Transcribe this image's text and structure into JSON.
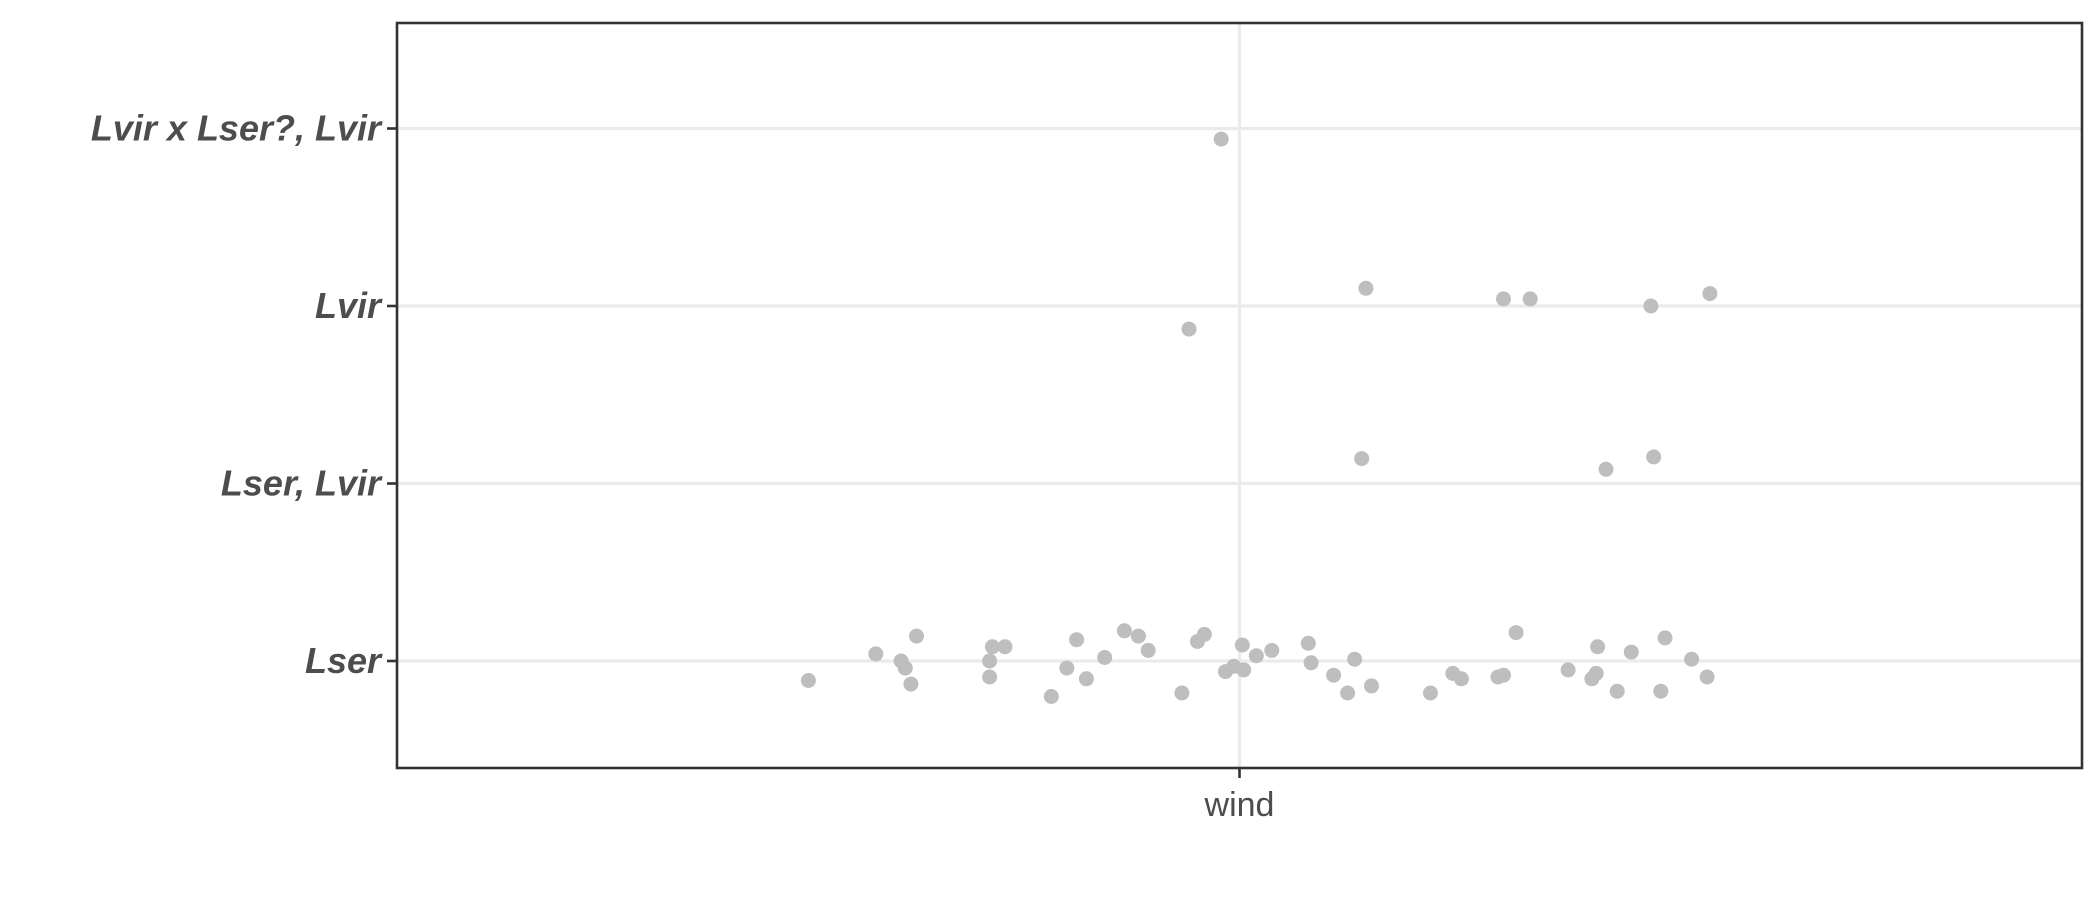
{
  "chart_data": {
    "type": "scatter",
    "title": "",
    "xlabel": "",
    "ylabel": "",
    "categories_x": [
      "wind"
    ],
    "categories_y": [
      "Lser",
      "Lser, Lvir",
      "Lvir",
      "Lvir x Lser?, Lvir"
    ],
    "grid": true,
    "legend": "none",
    "point_color": "#bebebe",
    "series": [
      {
        "x_category": "wind",
        "points": [
          {
            "jitter_x": -0.307,
            "y": "Lser",
            "jitter_y": -0.11
          },
          {
            "jitter_x": -0.259,
            "y": "Lser",
            "jitter_y": 0.04
          },
          {
            "jitter_x": -0.241,
            "y": "Lser",
            "jitter_y": 0.0
          },
          {
            "jitter_x": -0.238,
            "y": "Lser",
            "jitter_y": -0.04
          },
          {
            "jitter_x": -0.234,
            "y": "Lser",
            "jitter_y": -0.13
          },
          {
            "jitter_x": -0.23,
            "y": "Lser",
            "jitter_y": 0.14
          },
          {
            "jitter_x": -0.178,
            "y": "Lser",
            "jitter_y": -0.09
          },
          {
            "jitter_x": -0.178,
            "y": "Lser",
            "jitter_y": 0.0
          },
          {
            "jitter_x": -0.176,
            "y": "Lser",
            "jitter_y": 0.08
          },
          {
            "jitter_x": -0.167,
            "y": "Lser",
            "jitter_y": 0.08
          },
          {
            "jitter_x": -0.134,
            "y": "Lser",
            "jitter_y": -0.2
          },
          {
            "jitter_x": -0.123,
            "y": "Lser",
            "jitter_y": -0.04
          },
          {
            "jitter_x": -0.116,
            "y": "Lser",
            "jitter_y": 0.12
          },
          {
            "jitter_x": -0.109,
            "y": "Lser",
            "jitter_y": -0.1
          },
          {
            "jitter_x": -0.096,
            "y": "Lser",
            "jitter_y": 0.02
          },
          {
            "jitter_x": -0.082,
            "y": "Lser",
            "jitter_y": 0.17
          },
          {
            "jitter_x": -0.072,
            "y": "Lser",
            "jitter_y": 0.14
          },
          {
            "jitter_x": -0.065,
            "y": "Lser",
            "jitter_y": 0.06
          },
          {
            "jitter_x": -0.041,
            "y": "Lser",
            "jitter_y": -0.18
          },
          {
            "jitter_x": -0.036,
            "y": "Lvir",
            "jitter_y": -0.13
          },
          {
            "jitter_x": -0.03,
            "y": "Lser",
            "jitter_y": 0.11
          },
          {
            "jitter_x": -0.025,
            "y": "Lser",
            "jitter_y": 0.15
          },
          {
            "jitter_x": -0.013,
            "y": "Lvir x Lser?, Lvir",
            "jitter_y": -0.06
          },
          {
            "jitter_x": -0.01,
            "y": "Lser",
            "jitter_y": -0.06
          },
          {
            "jitter_x": -0.004,
            "y": "Lser",
            "jitter_y": -0.03
          },
          {
            "jitter_x": 0.002,
            "y": "Lser",
            "jitter_y": 0.09
          },
          {
            "jitter_x": 0.003,
            "y": "Lser",
            "jitter_y": -0.05
          },
          {
            "jitter_x": 0.012,
            "y": "Lser",
            "jitter_y": 0.03
          },
          {
            "jitter_x": 0.023,
            "y": "Lser",
            "jitter_y": 0.06
          },
          {
            "jitter_x": 0.049,
            "y": "Lser",
            "jitter_y": 0.1
          },
          {
            "jitter_x": 0.051,
            "y": "Lser",
            "jitter_y": -0.01
          },
          {
            "jitter_x": 0.067,
            "y": "Lser",
            "jitter_y": -0.08
          },
          {
            "jitter_x": 0.077,
            "y": "Lser",
            "jitter_y": -0.18
          },
          {
            "jitter_x": 0.082,
            "y": "Lser",
            "jitter_y": 0.01
          },
          {
            "jitter_x": 0.087,
            "y": "Lser, Lvir",
            "jitter_y": 0.14
          },
          {
            "jitter_x": 0.09,
            "y": "Lvir",
            "jitter_y": 0.1
          },
          {
            "jitter_x": 0.094,
            "y": "Lser",
            "jitter_y": -0.14
          },
          {
            "jitter_x": 0.136,
            "y": "Lser",
            "jitter_y": -0.18
          },
          {
            "jitter_x": 0.152,
            "y": "Lser",
            "jitter_y": -0.07
          },
          {
            "jitter_x": 0.158,
            "y": "Lser",
            "jitter_y": -0.1
          },
          {
            "jitter_x": 0.184,
            "y": "Lser",
            "jitter_y": -0.09
          },
          {
            "jitter_x": 0.188,
            "y": "Lser",
            "jitter_y": -0.08
          },
          {
            "jitter_x": 0.188,
            "y": "Lvir",
            "jitter_y": 0.04
          },
          {
            "jitter_x": 0.197,
            "y": "Lser",
            "jitter_y": 0.16
          },
          {
            "jitter_x": 0.207,
            "y": "Lvir",
            "jitter_y": 0.04
          },
          {
            "jitter_x": 0.234,
            "y": "Lser",
            "jitter_y": -0.05
          },
          {
            "jitter_x": 0.251,
            "y": "Lser",
            "jitter_y": -0.1
          },
          {
            "jitter_x": 0.254,
            "y": "Lser",
            "jitter_y": -0.07
          },
          {
            "jitter_x": 0.255,
            "y": "Lser",
            "jitter_y": 0.08
          },
          {
            "jitter_x": 0.261,
            "y": "Lser, Lvir",
            "jitter_y": 0.08
          },
          {
            "jitter_x": 0.269,
            "y": "Lser",
            "jitter_y": -0.17
          },
          {
            "jitter_x": 0.279,
            "y": "Lser",
            "jitter_y": 0.05
          },
          {
            "jitter_x": 0.293,
            "y": "Lvir",
            "jitter_y": 0.0
          },
          {
            "jitter_x": 0.295,
            "y": "Lser, Lvir",
            "jitter_y": 0.15
          },
          {
            "jitter_x": 0.3,
            "y": "Lser",
            "jitter_y": -0.17
          },
          {
            "jitter_x": 0.303,
            "y": "Lser",
            "jitter_y": 0.13
          },
          {
            "jitter_x": 0.322,
            "y": "Lser",
            "jitter_y": 0.01
          },
          {
            "jitter_x": 0.333,
            "y": "Lser",
            "jitter_y": -0.09
          },
          {
            "jitter_x": 0.335,
            "y": "Lvir",
            "jitter_y": 0.07
          }
        ]
      }
    ]
  }
}
